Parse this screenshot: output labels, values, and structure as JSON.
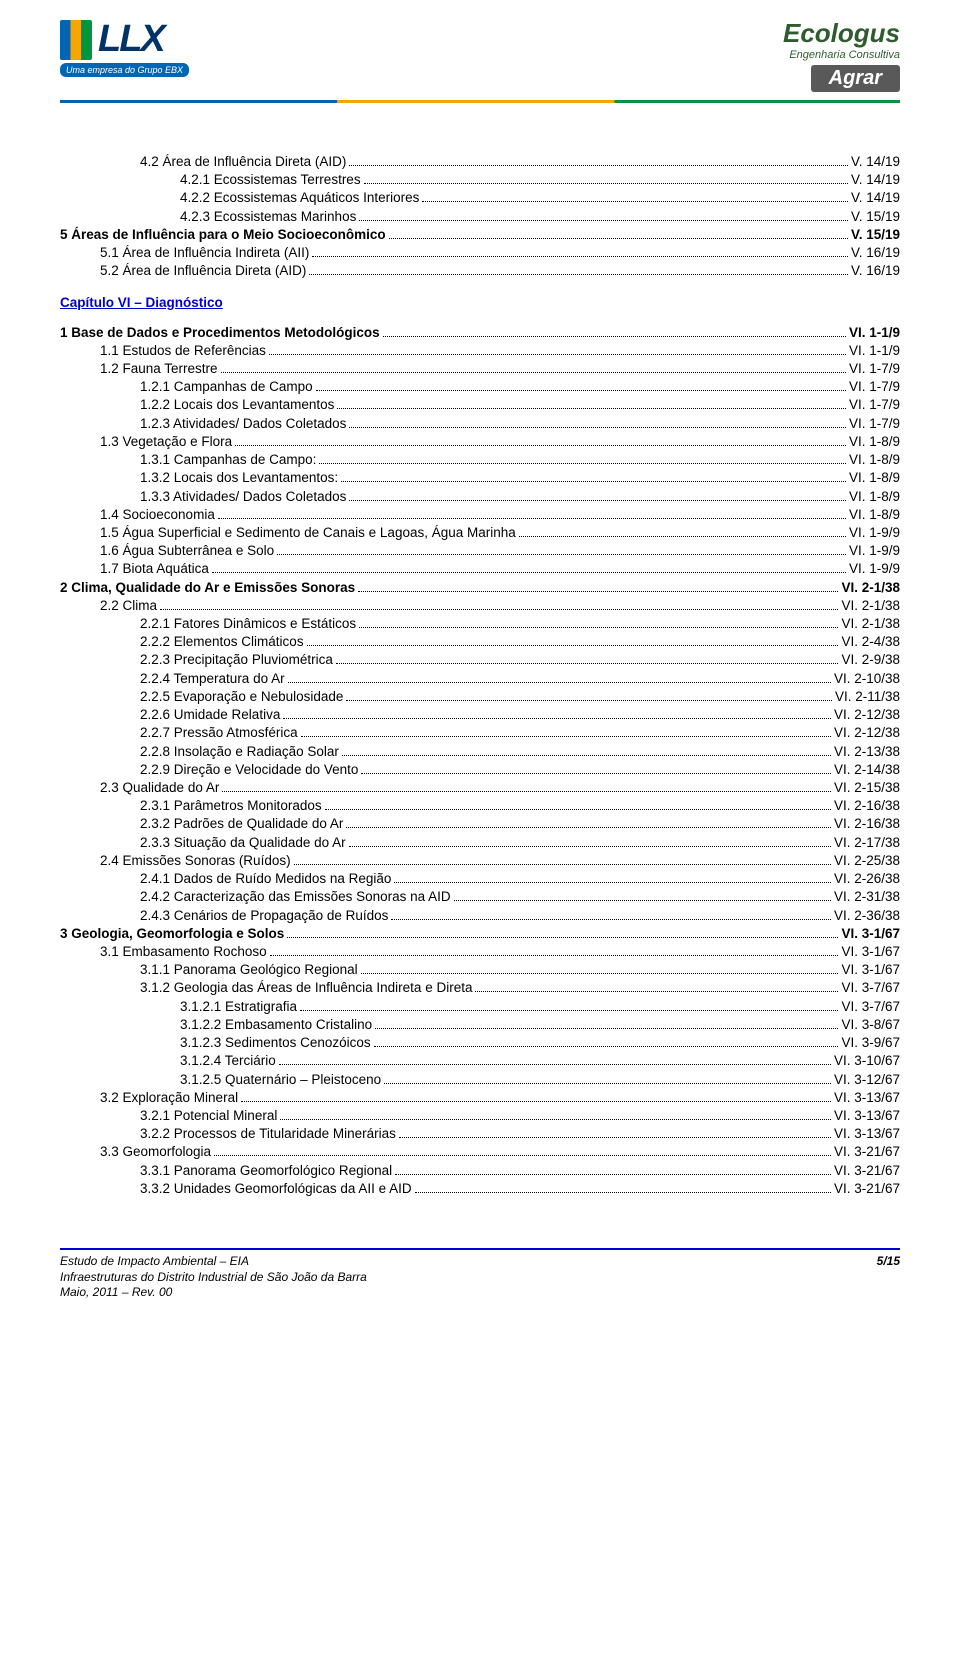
{
  "header": {
    "llx_text": "LLX",
    "ebx_tag": "Uma empresa do Grupo EBX",
    "ecologus": "Ecologus",
    "eng_cons": "Engenharia Consultiva",
    "agrar": "Agrar"
  },
  "chapter_heading": "Capítulo VI – Diagnóstico",
  "toc_top": [
    {
      "lvl": 2,
      "label": "4.2 Área de Influência Direta (AID)",
      "page": "V. 14/19"
    },
    {
      "lvl": 3,
      "label": "4.2.1 Ecossistemas Terrestres",
      "page": "V. 14/19"
    },
    {
      "lvl": 3,
      "label": "4.2.2 Ecossistemas Aquáticos Interiores",
      "page": "V. 14/19"
    },
    {
      "lvl": 3,
      "label": "4.2.3 Ecossistemas Marinhos",
      "page": "V. 15/19"
    },
    {
      "lvl": 0,
      "bold": true,
      "label": "5    Áreas de Influência para o Meio Socioeconômico",
      "page": "V. 15/19"
    },
    {
      "lvl": 1,
      "label": "5.1 Área de Influência Indireta (AII)",
      "page": "V. 16/19"
    },
    {
      "lvl": 1,
      "label": "5.2 Área de Influência Direta (AID)",
      "page": "V. 16/19"
    }
  ],
  "toc_main": [
    {
      "lvl": 0,
      "bold": true,
      "label": "1    Base de Dados e Procedimentos Metodológicos",
      "page": "VI. 1-1/9"
    },
    {
      "lvl": 1,
      "label": "1.1 Estudos de Referências",
      "page": "VI. 1-1/9"
    },
    {
      "lvl": 1,
      "label": "1.2 Fauna Terrestre",
      "page": "VI. 1-7/9"
    },
    {
      "lvl": 2,
      "label": "1.2.1 Campanhas de Campo",
      "page": "VI. 1-7/9"
    },
    {
      "lvl": 2,
      "label": "1.2.2 Locais dos Levantamentos",
      "page": "VI. 1-7/9"
    },
    {
      "lvl": 2,
      "label": "1.2.3 Atividades/ Dados Coletados",
      "page": "VI. 1-7/9"
    },
    {
      "lvl": 1,
      "label": "1.3 Vegetação e Flora",
      "page": "VI. 1-8/9"
    },
    {
      "lvl": 2,
      "label": "1.3.1 Campanhas de Campo:",
      "page": "VI. 1-8/9"
    },
    {
      "lvl": 2,
      "label": "1.3.2 Locais dos Levantamentos:",
      "page": "VI. 1-8/9"
    },
    {
      "lvl": 2,
      "label": "1.3.3 Atividades/ Dados Coletados",
      "page": "VI. 1-8/9"
    },
    {
      "lvl": 1,
      "label": "1.4 Socioeconomia",
      "page": "VI. 1-8/9"
    },
    {
      "lvl": 1,
      "label": "1.5 Água Superficial e Sedimento de Canais e Lagoas, Água Marinha",
      "page": "VI. 1-9/9"
    },
    {
      "lvl": 1,
      "label": "1.6 Água Subterrânea e Solo",
      "page": "VI. 1-9/9"
    },
    {
      "lvl": 1,
      "label": "1.7 Biota Aquática",
      "page": "VI. 1-9/9"
    },
    {
      "lvl": 0,
      "bold": true,
      "label": "2    Clima, Qualidade do Ar e Emissões Sonoras",
      "page": "VI. 2-1/38"
    },
    {
      "lvl": 1,
      "label": "2.2 Clima",
      "page": "VI. 2-1/38"
    },
    {
      "lvl": 2,
      "label": "2.2.1 Fatores Dinâmicos e Estáticos",
      "page": "VI. 2-1/38"
    },
    {
      "lvl": 2,
      "label": "2.2.2 Elementos Climáticos",
      "page": "VI. 2-4/38"
    },
    {
      "lvl": 2,
      "label": "2.2.3 Precipitação Pluviométrica",
      "page": "VI. 2-9/38"
    },
    {
      "lvl": 2,
      "label": "2.2.4 Temperatura do Ar",
      "page": "VI. 2-10/38"
    },
    {
      "lvl": 2,
      "label": "2.2.5 Evaporação e Nebulosidade",
      "page": "VI. 2-11/38"
    },
    {
      "lvl": 2,
      "label": "2.2.6 Umidade Relativa",
      "page": "VI. 2-12/38"
    },
    {
      "lvl": 2,
      "label": "2.2.7 Pressão Atmosférica",
      "page": "VI. 2-12/38"
    },
    {
      "lvl": 2,
      "label": "2.2.8 Insolação e Radiação Solar",
      "page": "VI. 2-13/38"
    },
    {
      "lvl": 2,
      "label": "2.2.9 Direção e Velocidade do Vento",
      "page": "VI. 2-14/38"
    },
    {
      "lvl": 1,
      "label": "2.3 Qualidade do Ar",
      "page": "VI. 2-15/38"
    },
    {
      "lvl": 2,
      "label": "2.3.1 Parâmetros Monitorados",
      "page": "VI. 2-16/38"
    },
    {
      "lvl": 2,
      "label": "2.3.2 Padrões de Qualidade do Ar",
      "page": "VI. 2-16/38"
    },
    {
      "lvl": 2,
      "label": "2.3.3 Situação da Qualidade do Ar",
      "page": "VI. 2-17/38"
    },
    {
      "lvl": 1,
      "label": "2.4 Emissões Sonoras (Ruídos)",
      "page": "VI. 2-25/38"
    },
    {
      "lvl": 2,
      "label": "2.4.1 Dados de Ruído Medidos na Região",
      "page": "VI. 2-26/38"
    },
    {
      "lvl": 2,
      "label": "2.4.2 Caracterização das Emissões Sonoras na AID",
      "page": "VI. 2-31/38"
    },
    {
      "lvl": 2,
      "label": "2.4.3 Cenários de Propagação de Ruídos",
      "page": "VI. 2-36/38"
    },
    {
      "lvl": 0,
      "bold": true,
      "label": "3    Geologia, Geomorfologia e Solos",
      "page": "VI. 3-1/67"
    },
    {
      "lvl": 1,
      "label": "3.1 Embasamento Rochoso",
      "page": "VI. 3-1/67"
    },
    {
      "lvl": 2,
      "label": "3.1.1 Panorama Geológico Regional",
      "page": "VI. 3-1/67"
    },
    {
      "lvl": 2,
      "label": "3.1.2 Geologia das Áreas de Influência Indireta e Direta",
      "page": "VI. 3-7/67"
    },
    {
      "lvl": 3,
      "label": "3.1.2.1 Estratigrafia",
      "page": "VI. 3-7/67"
    },
    {
      "lvl": 3,
      "label": "3.1.2.2 Embasamento Cristalino",
      "page": "VI. 3-8/67"
    },
    {
      "lvl": 3,
      "label": "3.1.2.3 Sedimentos Cenozóicos",
      "page": "VI. 3-9/67"
    },
    {
      "lvl": 3,
      "label": "3.1.2.4 Terciário",
      "page": "VI. 3-10/67"
    },
    {
      "lvl": 3,
      "label": "3.1.2.5 Quaternário – Pleistoceno",
      "page": "VI. 3-12/67"
    },
    {
      "lvl": 1,
      "label": "3.2 Exploração Mineral",
      "page": "VI. 3-13/67"
    },
    {
      "lvl": 2,
      "label": "3.2.1 Potencial Mineral",
      "page": "VI. 3-13/67"
    },
    {
      "lvl": 2,
      "label": "3.2.2 Processos de Titularidade Minerárias",
      "page": "VI. 3-13/67"
    },
    {
      "lvl": 1,
      "label": "3.3 Geomorfologia",
      "page": "VI. 3-21/67"
    },
    {
      "lvl": 2,
      "label": "3.3.1 Panorama Geomorfológico Regional",
      "page": "VI. 3-21/67"
    },
    {
      "lvl": 2,
      "label": "3.3.2 Unidades Geomorfológicas da AII e AID",
      "page": "VI. 3-21/67"
    }
  ],
  "footer": {
    "line1": "Estudo de Impacto Ambiental – EIA",
    "line2": "Infraestruturas do Distrito Industrial de São João da Barra",
    "line3": "Maio, 2011 – Rev. 00",
    "page": "5/15"
  }
}
